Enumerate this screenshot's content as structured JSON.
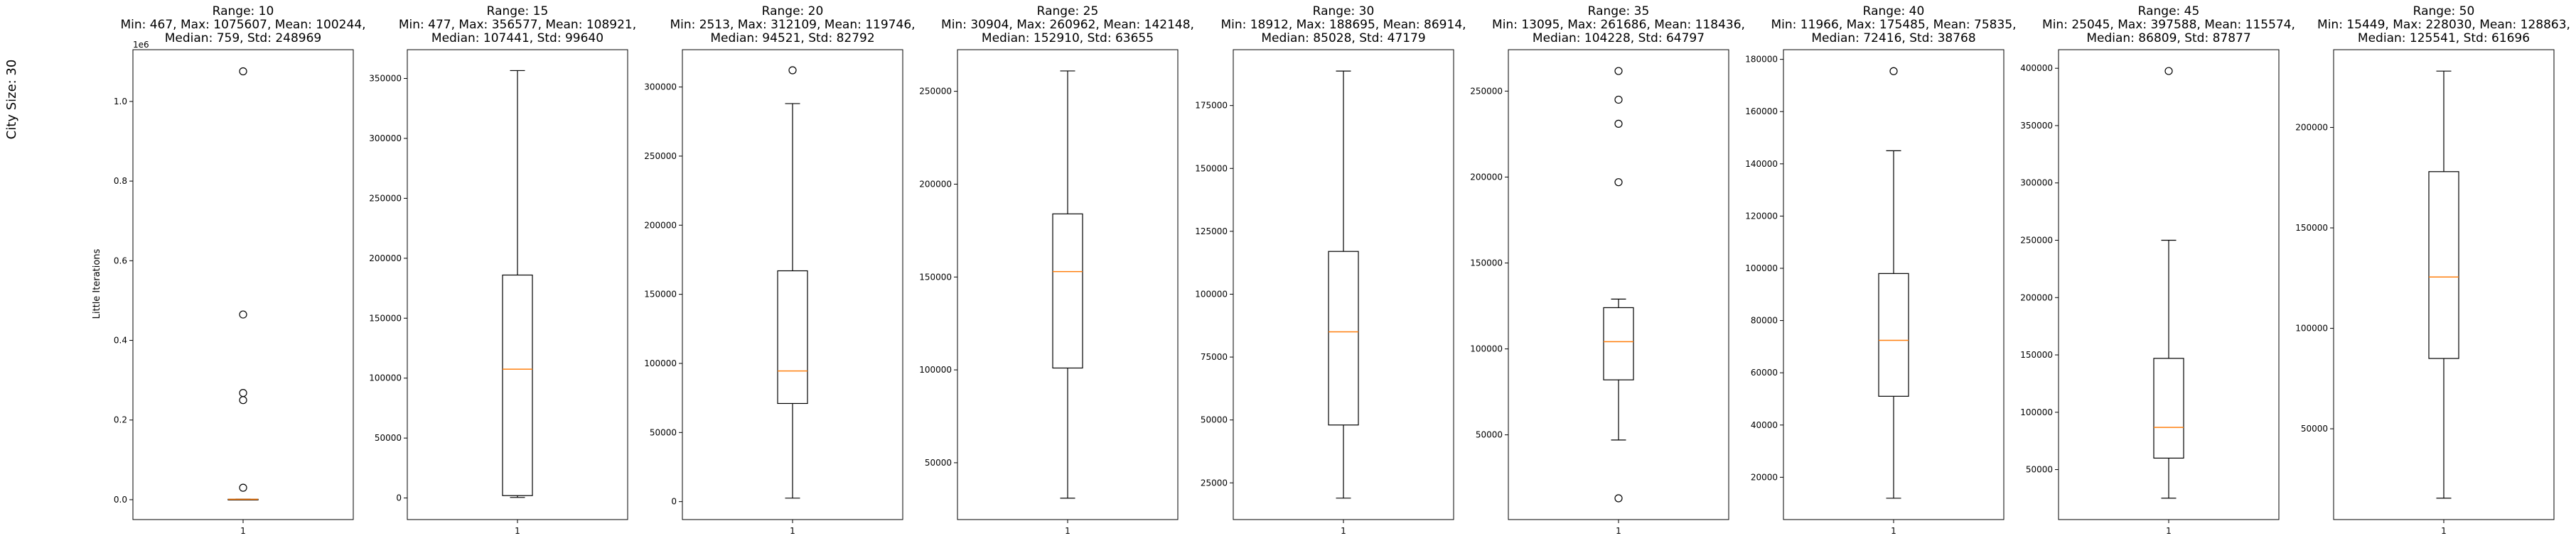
{
  "figure": {
    "row_label": "City Size: 30",
    "ylabel": "Little Iterations"
  },
  "chart_data": [
    {
      "type": "box",
      "title": "Range: 10",
      "stats_line1": "Min: 467, Max: 1075607, Mean: 100244,",
      "stats_line2": "Median: 759, Std: 248969",
      "category": "1",
      "ylim": [
        -50000,
        1130000
      ],
      "yticks": [
        0,
        200000,
        400000,
        600000,
        800000,
        1000000
      ],
      "ytick_labels": [
        "0.0",
        "0.2",
        "0.4",
        "0.6",
        "0.8",
        "1.0"
      ],
      "offset_text": "1e6",
      "whisker_low": 467,
      "q1": 600,
      "median": 759,
      "q3": 1000,
      "whisker_high": 1100,
      "outliers": [
        30000,
        250000,
        268000,
        465000,
        1075607
      ]
    },
    {
      "type": "box",
      "title": "Range: 15",
      "stats_line1": "Min: 477, Max: 356577, Mean: 108921,",
      "stats_line2": "Median: 107441, Std: 99640",
      "category": "1",
      "ylim": [
        -18000,
        374000
      ],
      "yticks": [
        0,
        50000,
        100000,
        150000,
        200000,
        250000,
        300000,
        350000
      ],
      "ytick_labels": [
        "0",
        "50000",
        "100000",
        "150000",
        "200000",
        "250000",
        "300000",
        "350000"
      ],
      "offset_text": "",
      "whisker_low": 477,
      "q1": 2000,
      "median": 107441,
      "q3": 186000,
      "whisker_high": 356577,
      "outliers": []
    },
    {
      "type": "box",
      "title": "Range: 20",
      "stats_line1": "Min: 2513, Max: 312109, Mean: 119746,",
      "stats_line2": "Median: 94521, Std: 82792",
      "category": "1",
      "ylim": [
        -13000,
        327000
      ],
      "yticks": [
        0,
        50000,
        100000,
        150000,
        200000,
        250000,
        300000
      ],
      "ytick_labels": [
        "0",
        "50000",
        "100000",
        "150000",
        "200000",
        "250000",
        "300000"
      ],
      "offset_text": "",
      "whisker_low": 2513,
      "q1": 71000,
      "median": 94521,
      "q3": 167000,
      "whisker_high": 288000,
      "outliers": [
        312109
      ]
    },
    {
      "type": "box",
      "title": "Range: 25",
      "stats_line1": "Min: 30904, Max: 260962, Mean: 142148,",
      "stats_line2": "Median: 152910, Std: 63655",
      "category": "1",
      "ylim": [
        19400,
        272400
      ],
      "yticks": [
        50000,
        100000,
        150000,
        200000,
        250000
      ],
      "ytick_labels": [
        "50000",
        "100000",
        "150000",
        "200000",
        "250000"
      ],
      "offset_text": "",
      "whisker_low": 30904,
      "q1": 101000,
      "median": 152910,
      "q3": 184000,
      "whisker_high": 260962,
      "outliers": []
    },
    {
      "type": "box",
      "title": "Range: 30",
      "stats_line1": "Min: 18912, Max: 188695, Mean: 86914,",
      "stats_line2": "Median: 85028, Std: 47179",
      "category": "1",
      "ylim": [
        10400,
        197200
      ],
      "yticks": [
        25000,
        50000,
        75000,
        100000,
        125000,
        150000,
        175000
      ],
      "ytick_labels": [
        "25000",
        "50000",
        "75000",
        "100000",
        "125000",
        "150000",
        "175000"
      ],
      "offset_text": "",
      "whisker_low": 18912,
      "q1": 48000,
      "median": 85028,
      "q3": 117000,
      "whisker_high": 188695,
      "outliers": []
    },
    {
      "type": "box",
      "title": "Range: 35",
      "stats_line1": "Min: 13095, Max: 261686, Mean: 118436,",
      "stats_line2": "Median: 104228, Std: 64797",
      "category": "1",
      "ylim": [
        700,
        274100
      ],
      "yticks": [
        50000,
        100000,
        150000,
        200000,
        250000
      ],
      "ytick_labels": [
        "50000",
        "100000",
        "150000",
        "200000",
        "250000"
      ],
      "offset_text": "",
      "whisker_low": 47000,
      "q1": 82000,
      "median": 104228,
      "q3": 124000,
      "whisker_high": 129000,
      "outliers": [
        13095,
        197000,
        231000,
        245000,
        261686
      ]
    },
    {
      "type": "box",
      "title": "Range: 40",
      "stats_line1": "Min: 11966, Max: 175485, Mean: 75835,",
      "stats_line2": "Median: 72416, Std: 38768",
      "category": "1",
      "ylim": [
        3800,
        183700
      ],
      "yticks": [
        20000,
        40000,
        60000,
        80000,
        100000,
        120000,
        140000,
        160000,
        180000
      ],
      "ytick_labels": [
        "20000",
        "40000",
        "60000",
        "80000",
        "100000",
        "120000",
        "140000",
        "160000",
        "180000"
      ],
      "offset_text": "",
      "whisker_low": 11966,
      "q1": 51000,
      "median": 72416,
      "q3": 98000,
      "whisker_high": 145000,
      "outliers": [
        175485
      ]
    },
    {
      "type": "box",
      "title": "Range: 45",
      "stats_line1": "Min: 25045, Max: 397588, Mean: 115574,",
      "stats_line2": "Median: 86809, Std: 87877",
      "category": "1",
      "ylim": [
        6400,
        416200
      ],
      "yticks": [
        50000,
        100000,
        150000,
        200000,
        250000,
        300000,
        350000,
        400000
      ],
      "ytick_labels": [
        "50000",
        "100000",
        "150000",
        "200000",
        "250000",
        "300000",
        "350000",
        "400000"
      ],
      "offset_text": "",
      "whisker_low": 25045,
      "q1": 60000,
      "median": 86809,
      "q3": 147000,
      "whisker_high": 250000,
      "outliers": [
        397588
      ]
    },
    {
      "type": "box",
      "title": "Range: 50",
      "stats_line1": "Min: 15449, Max: 228030, Mean: 128863,",
      "stats_line2": "Median: 125541, Std: 61696",
      "category": "1",
      "ylim": [
        4800,
        238700
      ],
      "yticks": [
        50000,
        100000,
        150000,
        200000
      ],
      "ytick_labels": [
        "50000",
        "100000",
        "150000",
        "200000"
      ],
      "offset_text": "",
      "whisker_low": 15449,
      "q1": 85000,
      "median": 125541,
      "q3": 178000,
      "whisker_high": 228030,
      "outliers": []
    }
  ],
  "colors": {
    "box": "#000000",
    "median": "#ff7f0e",
    "outlier_edge": "#000000",
    "background": "#ffffff"
  }
}
